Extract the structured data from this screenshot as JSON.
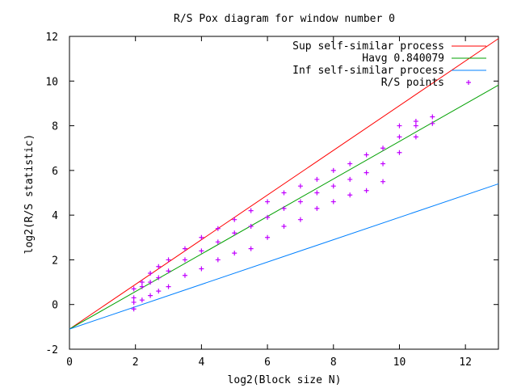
{
  "chart_data": {
    "type": "scatter",
    "title": "R/S Pox diagram for window number 0",
    "xlabel": "log2(Block size N)",
    "ylabel": "log2(R/S statistic)",
    "xlim": [
      0,
      13
    ],
    "ylim": [
      -2,
      12
    ],
    "x_ticks": [
      0,
      2,
      4,
      6,
      8,
      10,
      12
    ],
    "y_ticks": [
      -2,
      0,
      2,
      4,
      6,
      8,
      10,
      12
    ],
    "grid": false,
    "legend_position": "top-right",
    "series": [
      {
        "name": "Sup self-similar process",
        "kind": "line",
        "color": "#ff0000",
        "x": [
          0,
          13
        ],
        "y": [
          -1.1,
          11.9
        ]
      },
      {
        "name": "Havg 0.840079",
        "kind": "line",
        "color": "#00a000",
        "x": [
          0,
          13
        ],
        "y": [
          -1.1,
          9.82
        ]
      },
      {
        "name": "Inf self-similar process",
        "kind": "line",
        "color": "#0080ff",
        "x": [
          0,
          13
        ],
        "y": [
          -1.1,
          5.4
        ]
      },
      {
        "name": "R/S points",
        "kind": "scatter",
        "marker": "+",
        "color": "#c000ff",
        "x": [
          1.95,
          1.95,
          1.95,
          1.95,
          2.2,
          2.2,
          2.2,
          2.45,
          2.45,
          2.45,
          2.7,
          2.7,
          2.7,
          3.0,
          3.0,
          3.0,
          3.5,
          3.5,
          3.5,
          4.0,
          4.0,
          4.0,
          4.5,
          4.5,
          4.5,
          5.0,
          5.0,
          5.0,
          5.5,
          5.5,
          5.5,
          6.0,
          6.0,
          6.0,
          6.5,
          6.5,
          6.5,
          7.0,
          7.0,
          7.0,
          7.5,
          7.5,
          7.5,
          8.0,
          8.0,
          8.0,
          8.5,
          8.5,
          8.5,
          9.0,
          9.0,
          9.0,
          9.5,
          9.5,
          9.5,
          10.0,
          10.0,
          10.0,
          10.5,
          10.5,
          10.5,
          11.0,
          11.0
        ],
        "y": [
          -0.2,
          0.3,
          0.7,
          0.1,
          0.2,
          0.8,
          1.0,
          0.4,
          1.0,
          1.4,
          0.6,
          1.2,
          1.7,
          0.8,
          1.5,
          2.0,
          1.3,
          2.0,
          2.5,
          1.6,
          2.4,
          3.0,
          2.0,
          2.8,
          3.4,
          2.3,
          3.2,
          3.8,
          2.5,
          3.5,
          4.2,
          3.0,
          3.9,
          4.6,
          3.5,
          4.3,
          5.0,
          3.8,
          4.6,
          5.3,
          4.3,
          5.0,
          5.6,
          4.6,
          5.3,
          6.0,
          4.9,
          5.6,
          6.3,
          5.1,
          5.9,
          6.7,
          5.5,
          6.3,
          7.0,
          6.8,
          7.5,
          8.0,
          7.5,
          8.0,
          8.2,
          8.1,
          8.4
        ]
      }
    ]
  }
}
